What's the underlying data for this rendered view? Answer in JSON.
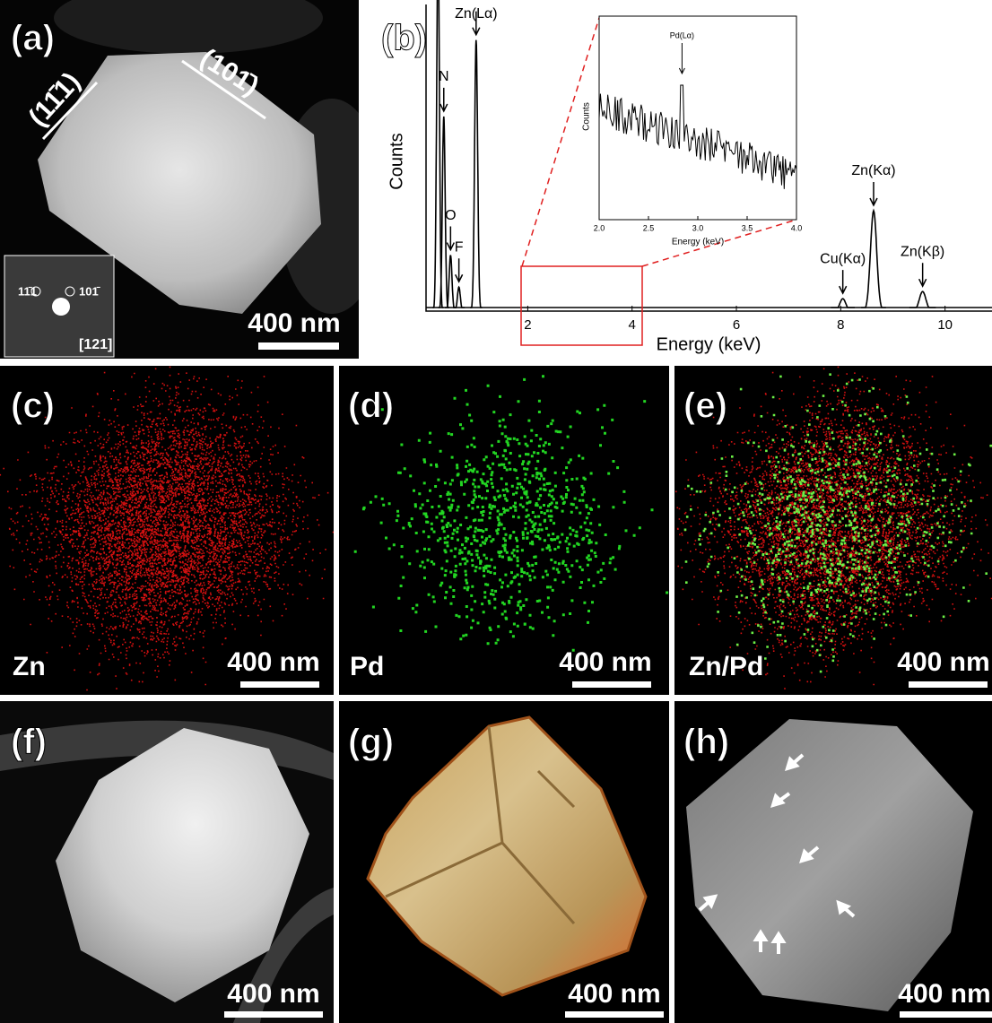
{
  "panels": {
    "a": {
      "label": "(a)",
      "planes": [
        "(11̄1)",
        "(101̄)"
      ],
      "diffraction": {
        "spots": [
          "11̄1",
          "101̄"
        ],
        "zone_axis": "[121]"
      },
      "scale_bar": "400 nm"
    },
    "b": {
      "label": "(b)"
    },
    "c": {
      "label": "(c)",
      "caption": "Zn",
      "scale_bar": "400 nm"
    },
    "d": {
      "label": "(d)",
      "caption": "Pd",
      "scale_bar": "400 nm"
    },
    "e": {
      "label": "(e)",
      "caption": "Zn/Pd",
      "scale_bar": "400 nm"
    },
    "f": {
      "label": "(f)",
      "scale_bar": "400 nm"
    },
    "g": {
      "label": "(g)",
      "scale_bar": "400 nm"
    },
    "h": {
      "label": "(h)",
      "scale_bar": "400 nm"
    }
  },
  "chart_data": {
    "type": "line",
    "x_label": "Energy (keV)",
    "y_label": "Counts",
    "color": "#000000",
    "xlim": [
      0.05,
      10.9
    ],
    "xticks": [
      2,
      4,
      6,
      8,
      10
    ],
    "ylim": [
      0,
      345
    ],
    "peaks": [
      {
        "label": null,
        "energy": 0.28,
        "height": 420
      },
      {
        "label": "N",
        "energy": 0.39,
        "height": 219
      },
      {
        "label": "O",
        "energy": 0.52,
        "height": 63
      },
      {
        "label": "F",
        "energy": 0.68,
        "height": 27
      },
      {
        "label": "Zn(Lα)",
        "energy": 1.01,
        "height": 305
      },
      {
        "label": "Cu(Kα)",
        "energy": 8.04,
        "height": 14
      },
      {
        "label": "Zn(Kα)",
        "energy": 8.63,
        "height": 113
      },
      {
        "label": "Zn(Kβ)",
        "energy": 9.57,
        "height": 22
      }
    ],
    "inset": {
      "x_label": "Energy (keV)",
      "y_label": "Counts",
      "xlim": [
        2,
        4
      ],
      "xticks": [
        {
          "value": 2,
          "label": "2.0"
        },
        2.5,
        {
          "value": 3,
          "label": "3.0"
        },
        3.5,
        {
          "value": 4,
          "label": "4.0"
        }
      ],
      "peak_label": "Pd(Lα)",
      "peak_energy": 2.84
    }
  }
}
